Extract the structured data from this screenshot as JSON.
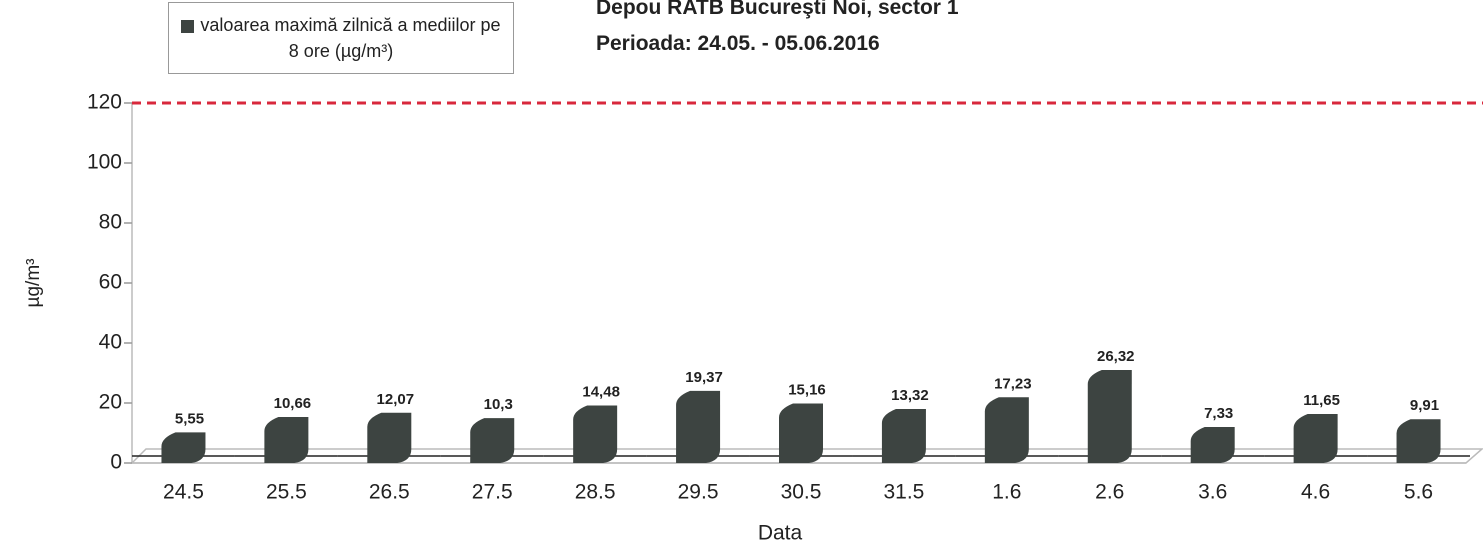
{
  "chart_data": {
    "type": "bar",
    "title": "Depou RATB Bucureşti Noi, sector 1",
    "subtitle": "Perioada: 24.05. - 05.06.2016",
    "x_label": "Data",
    "y_label": "µg/m³",
    "categories": [
      "24.5",
      "25.5",
      "26.5",
      "27.5",
      "28.5",
      "29.5",
      "30.5",
      "31.5",
      "1.6",
      "2.6",
      "3.6",
      "4.6",
      "5.6"
    ],
    "series": [
      {
        "name": "valoarea maximă zilnică a mediilor pe 8 ore (µg/m³)",
        "color": "#3d4441",
        "values": [
          5.55,
          10.66,
          12.07,
          10.3,
          14.48,
          19.37,
          15.16,
          13.32,
          17.23,
          26.32,
          7.33,
          11.65,
          9.91
        ],
        "value_labels": [
          "5,55",
          "10,66",
          "12,07",
          "10,3",
          "14,48",
          "19,37",
          "15,16",
          "13,32",
          "17,23",
          "26,32",
          "7,33",
          "11,65",
          "9,91"
        ]
      }
    ],
    "threshold": 120,
    "threshold_color": "#d8283c",
    "ylim": [
      0,
      120
    ],
    "yticks": [
      0,
      20,
      40,
      60,
      80,
      100,
      120
    ]
  }
}
